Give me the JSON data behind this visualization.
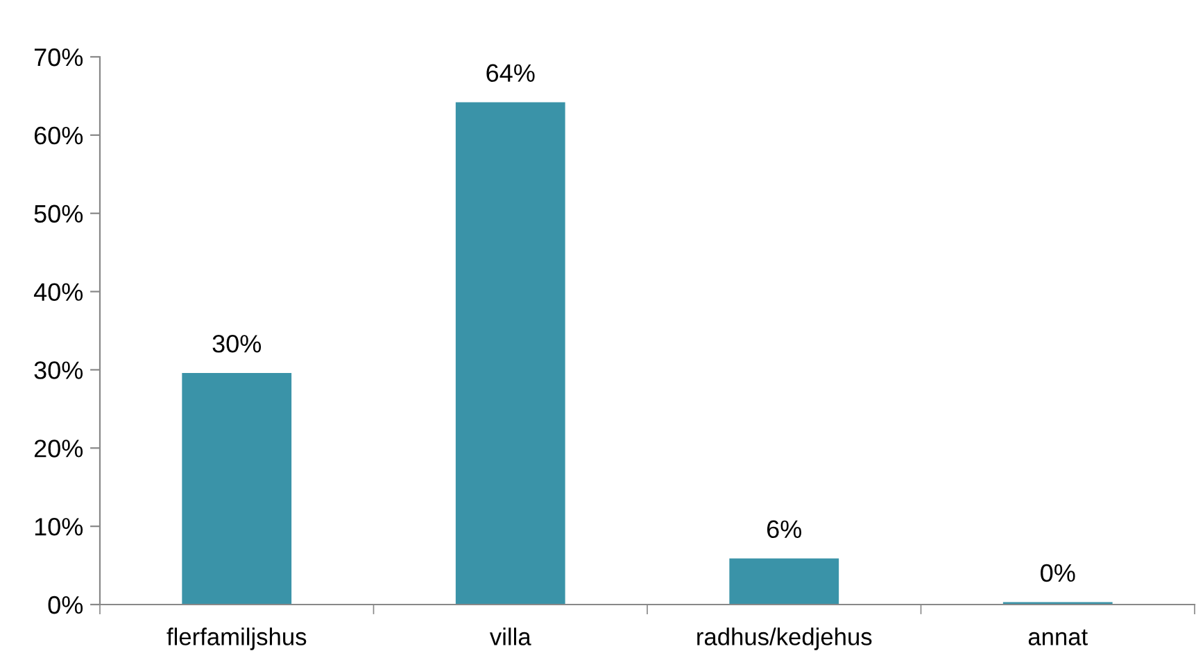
{
  "chart_data": {
    "type": "bar",
    "categories": [
      "flerfamiljshus",
      "villa",
      "radhus/kedjehus",
      "annat"
    ],
    "values": [
      29.6,
      64.2,
      5.9,
      0.3
    ],
    "value_labels": [
      "30%",
      "64%",
      "6%",
      "0%"
    ],
    "color": "#3a93a8",
    "ylim": [
      0,
      70
    ],
    "yticks": [
      {
        "value": 0,
        "label": "0%"
      },
      {
        "value": 10,
        "label": "10%"
      },
      {
        "value": 20,
        "label": "20%"
      },
      {
        "value": 30,
        "label": "30%"
      },
      {
        "value": 40,
        "label": "40%"
      },
      {
        "value": 50,
        "label": "50%"
      },
      {
        "value": 60,
        "label": "60%"
      },
      {
        "value": 70,
        "label": "70%"
      }
    ],
    "grid": false
  }
}
